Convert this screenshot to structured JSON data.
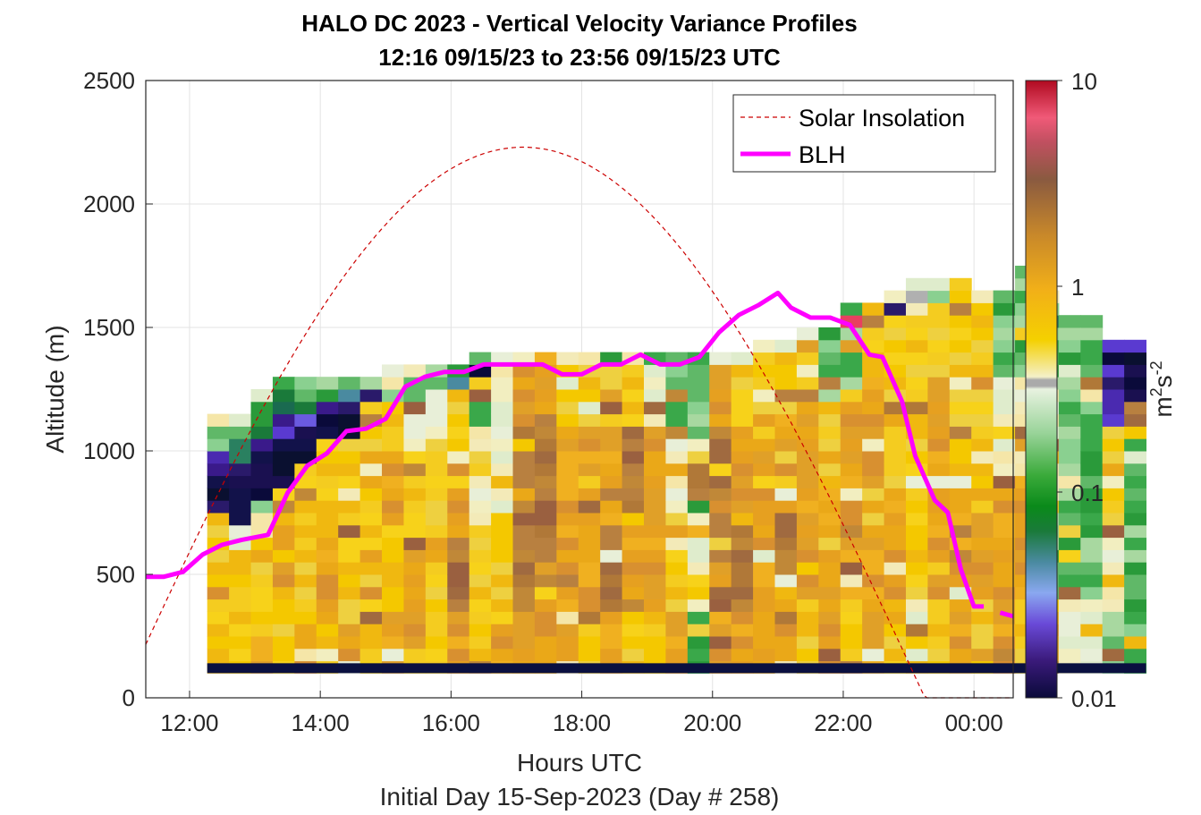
{
  "chart_data": {
    "type": "heatmap",
    "title": "HALO DC 2023 - Vertical Velocity Variance Profiles",
    "subtitle": "12:16 09/15/23 to 23:56 09/15/23  UTC",
    "xlabel": "Hours UTC",
    "ylabel": "Altitude (m)",
    "footer": "Initial Day 15-Sep-2023 (Day # 258)",
    "x_ticks": [
      "12:00",
      "14:00",
      "16:00",
      "18:00",
      "20:00",
      "22:00",
      "00:00"
    ],
    "y_ticks": [
      "0",
      "500",
      "1000",
      "1500",
      "2000",
      "2500"
    ],
    "xlim_hours": [
      11.33,
      24.6
    ],
    "ylim": [
      0,
      2500
    ],
    "grid": true,
    "colorbar": {
      "scale": "log",
      "range": [
        0.01,
        10
      ],
      "ticks": [
        "0.01",
        "0.1",
        "1",
        "10"
      ],
      "label": "m",
      "label_exponent_1": "2",
      "label_mid": "s",
      "label_exponent_2": "-2"
    },
    "legend": {
      "placement": "top-right",
      "entries": [
        {
          "label": "Solar Insolation",
          "style": "dashed",
          "color": "#cc0000"
        },
        {
          "label": "BLH",
          "style": "solid",
          "color": "#ff00ff"
        }
      ]
    },
    "heatmap": {
      "time_start_hour": 12.27,
      "time_step_hour": 0.334,
      "alt_bin_start_m": 100,
      "alt_bin_step_m": 50,
      "cell_width_hour": 0.334,
      "columns": [
        {
          "top": 1150,
          "bottom": "y",
          "low": "y",
          "mid": "y",
          "upper": "y",
          "cap": [
            "b",
            "n",
            "n",
            "b",
            "b",
            "g",
            "g",
            "w"
          ]
        },
        {
          "top": 1150,
          "bottom": "y",
          "low": "y",
          "mid": "y",
          "upper": "w",
          "cap": [
            "n",
            "n",
            "n",
            "n",
            "b",
            "t",
            "t",
            "g",
            "w"
          ]
        },
        {
          "top": 1250,
          "bottom": "o",
          "low": "y",
          "mid": "y",
          "upper": "w",
          "cap": [
            "g",
            "n",
            "n",
            "n",
            "n",
            "b",
            "t",
            "g",
            "g",
            "w"
          ]
        },
        {
          "top": 1300,
          "bottom": "y",
          "low": "y",
          "mid": "o",
          "upper": "y",
          "cap": [
            "n",
            "n",
            "n",
            "n",
            "b",
            "b",
            "t",
            "t",
            "g"
          ]
        },
        {
          "top": 1300,
          "bottom": "o",
          "low": "y",
          "mid": "y",
          "upper": "y",
          "cap": [
            "n",
            "n",
            "n",
            "b",
            "t",
            "g",
            "g"
          ]
        },
        {
          "top": 1300,
          "bottom": "y",
          "low": "o",
          "mid": "y",
          "upper": "y",
          "cap": [
            "n",
            "n",
            "b",
            "g",
            "g"
          ]
        },
        {
          "top": 1300,
          "bottom": "o",
          "low": "y",
          "mid": "y",
          "upper": "y",
          "cap": [
            "n",
            "n",
            "b",
            "t",
            "g"
          ]
        },
        {
          "top": 1300,
          "bottom": "y",
          "low": "y",
          "mid": "y",
          "upper": "y",
          "cap": [
            "b",
            "g"
          ]
        },
        {
          "top": 1350,
          "bottom": "o",
          "low": "y",
          "mid": "o",
          "upper": "y",
          "cap": [
            "g",
            "w",
            "w"
          ]
        },
        {
          "top": 1350,
          "bottom": "y",
          "low": "o",
          "mid": "y",
          "upper": "w",
          "cap": [
            "g",
            "g",
            "w"
          ]
        },
        {
          "top": 1350,
          "bottom": "y",
          "low": "y",
          "mid": "y",
          "upper": "w",
          "cap": [
            "g",
            "g"
          ]
        },
        {
          "top": 1350,
          "bottom": "o",
          "low": "d",
          "mid": "o",
          "upper": "y",
          "cap": [
            "t",
            "g"
          ]
        },
        {
          "top": 1400,
          "bottom": "y",
          "low": "y",
          "mid": "w",
          "upper": "g",
          "cap": [
            "n",
            "g"
          ]
        },
        {
          "top": 1400,
          "bottom": "o",
          "low": "y",
          "mid": "w",
          "upper": "w",
          "cap": [
            "w"
          ]
        },
        {
          "top": 1400,
          "bottom": "o",
          "low": "d",
          "mid": "d",
          "upper": "o",
          "cap": [
            "w"
          ]
        },
        {
          "top": 1400,
          "bottom": "o",
          "low": "d",
          "mid": "d",
          "upper": "o",
          "cap": []
        },
        {
          "top": 1400,
          "bottom": "o",
          "low": "o",
          "mid": "o",
          "upper": "y",
          "cap": [
            "w"
          ]
        },
        {
          "top": 1400,
          "bottom": "y",
          "low": "o",
          "mid": "o",
          "upper": "y",
          "cap": [
            "w"
          ]
        },
        {
          "top": 1400,
          "bottom": "o",
          "low": "d",
          "mid": "o",
          "upper": "y",
          "cap": [
            "g"
          ]
        },
        {
          "top": 1400,
          "bottom": "y",
          "low": "o",
          "mid": "d",
          "upper": "y",
          "cap": [
            "w"
          ]
        },
        {
          "top": 1400,
          "bottom": "y",
          "low": "o",
          "mid": "o",
          "upper": "w",
          "cap": [
            "g"
          ]
        },
        {
          "top": 1400,
          "bottom": "o",
          "low": "y",
          "mid": "w",
          "upper": "g",
          "cap": [
            "g"
          ]
        },
        {
          "top": 1400,
          "bottom": "g",
          "low": "w",
          "mid": "g",
          "upper": "g",
          "cap": [
            "g"
          ]
        },
        {
          "top": 1400,
          "bottom": "o",
          "low": "d",
          "mid": "d",
          "upper": "o",
          "cap": [
            "w"
          ]
        },
        {
          "top": 1400,
          "bottom": "o",
          "low": "d",
          "mid": "o",
          "upper": "y",
          "cap": [
            "w"
          ]
        },
        {
          "top": 1450,
          "bottom": "o",
          "low": "o",
          "mid": "o",
          "upper": "y",
          "cap": [
            "w"
          ]
        },
        {
          "top": 1450,
          "bottom": "o",
          "low": "d",
          "mid": "o",
          "upper": "y",
          "cap": [
            "w"
          ]
        },
        {
          "top": 1500,
          "bottom": "y",
          "low": "o",
          "mid": "o",
          "upper": "y",
          "cap": [
            "w"
          ]
        },
        {
          "top": 1500,
          "bottom": "o",
          "low": "o",
          "mid": "y",
          "upper": "g",
          "cap": [
            "g"
          ]
        },
        {
          "top": 1600,
          "bottom": "y",
          "low": "o",
          "mid": "o",
          "upper": "g",
          "cap": [
            "r",
            "g"
          ]
        },
        {
          "top": 1600,
          "bottom": "o",
          "low": "o",
          "mid": "o",
          "upper": "y",
          "cap": [
            "y"
          ]
        },
        {
          "top": 1650,
          "bottom": "y",
          "low": "o",
          "mid": "y",
          "upper": "y",
          "cap": [
            "b",
            "w"
          ]
        },
        {
          "top": 1700,
          "bottom": "w",
          "low": "y",
          "mid": "y",
          "upper": "y",
          "cap": [
            "w",
            "x",
            "w"
          ]
        },
        {
          "top": 1700,
          "bottom": "y",
          "low": "o",
          "mid": "o",
          "upper": "y",
          "cap": [
            "g",
            "w"
          ]
        },
        {
          "top": 1700,
          "bottom": "o",
          "low": "o",
          "mid": "y",
          "upper": "y",
          "cap": [
            "y"
          ]
        },
        {
          "top": 1650,
          "bottom": "y",
          "low": "o",
          "mid": "y",
          "upper": "y",
          "cap": [
            "w"
          ]
        },
        {
          "top": 1650,
          "bottom": "o",
          "low": "o",
          "mid": "w",
          "upper": "g",
          "cap": [
            "g",
            "g"
          ]
        },
        {
          "top": 1750,
          "bottom": "y",
          "low": "o",
          "mid": "w",
          "upper": "g",
          "cap": [
            "g",
            "g",
            "g"
          ]
        },
        {
          "top": 1650,
          "bottom": "o",
          "low": "g",
          "mid": "w",
          "upper": "g",
          "cap": [
            "t",
            "g",
            "w"
          ]
        },
        {
          "top": 1550,
          "bottom": "w",
          "low": "g",
          "mid": "g",
          "upper": "g",
          "cap": [
            "g",
            "g",
            "g"
          ]
        },
        {
          "top": 1550,
          "bottom": "w",
          "low": "g",
          "mid": "g",
          "upper": "g",
          "cap": [
            "g",
            "g"
          ]
        },
        {
          "top": 1450,
          "bottom": "g",
          "low": "w",
          "mid": "y",
          "upper": "b",
          "cap": [
            "b",
            "n",
            "b"
          ]
        },
        {
          "top": 1450,
          "bottom": "g",
          "low": "g",
          "mid": "g",
          "upper": "n",
          "cap": [
            "n",
            "n",
            "b"
          ]
        }
      ],
      "ground_band": {
        "alt_bottom_m": 100,
        "alt_top_m": 140,
        "color": "#0a1040"
      }
    },
    "series": [
      {
        "name": "BLH",
        "x_hours": [
          11.33,
          11.6,
          11.9,
          12.2,
          12.5,
          12.8,
          13.2,
          13.5,
          13.8,
          14.1,
          14.4,
          14.7,
          15.0,
          15.3,
          15.6,
          15.9,
          16.2,
          16.5,
          16.8,
          17.1,
          17.4,
          17.7,
          18.0,
          18.3,
          18.6,
          18.9,
          19.2,
          19.5,
          19.8,
          20.1,
          20.4,
          20.7,
          21.0,
          21.2,
          21.5,
          21.8,
          22.1,
          22.4,
          22.6,
          22.9,
          23.1,
          23.4,
          23.6,
          23.8,
          24.0,
          24.15
        ],
        "y_m": [
          490,
          490,
          510,
          580,
          620,
          640,
          660,
          830,
          940,
          990,
          1080,
          1090,
          1130,
          1260,
          1300,
          1320,
          1320,
          1350,
          1350,
          1350,
          1350,
          1310,
          1310,
          1350,
          1350,
          1390,
          1350,
          1350,
          1380,
          1480,
          1550,
          1590,
          1640,
          1580,
          1540,
          1540,
          1510,
          1390,
          1380,
          1200,
          980,
          800,
          750,
          520,
          370,
          370
        ],
        "segment2_x_hours": [
          24.4,
          24.6
        ],
        "segment2_y_m": [
          345,
          330
        ],
        "color": "#ff00ff"
      },
      {
        "name": "Solar Insolation",
        "peak_hour": 17.1,
        "peak_altitude_m": 2230,
        "zero_hour_end": 23.25,
        "color": "#cc0000"
      }
    ]
  }
}
